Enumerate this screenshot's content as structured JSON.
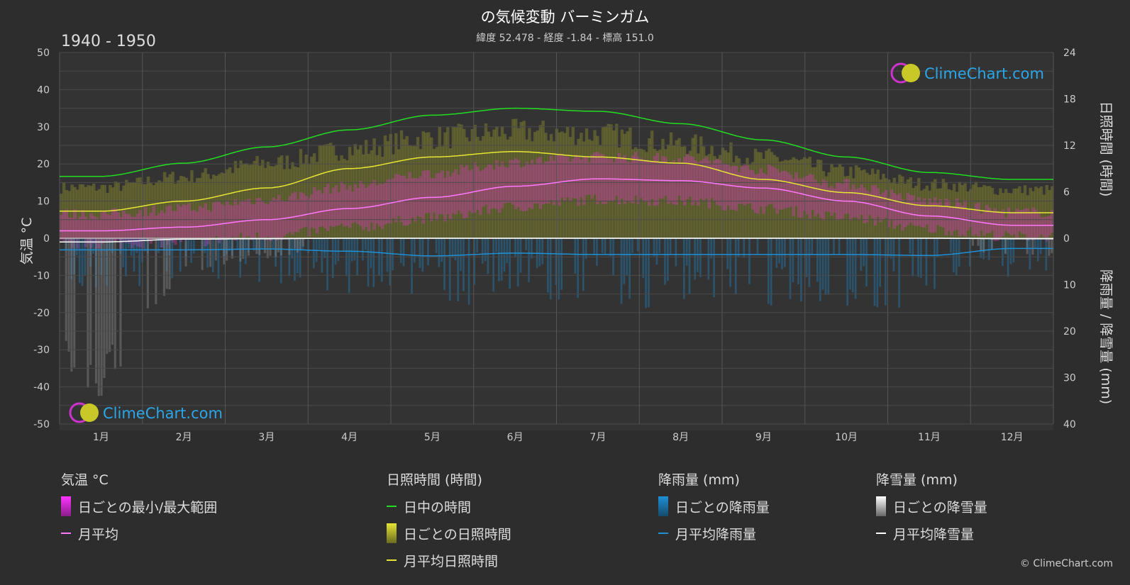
{
  "header": {
    "title": "の気候変動 バーミンガム",
    "subtitle": "緯度 52.478 - 経度 -1.84 - 標高 151.0",
    "period": "1940 - 1950"
  },
  "watermark": {
    "text": "ClimeChart.com"
  },
  "copyright": "© ClimeChart.com",
  "legend": {
    "temperature": {
      "title": "気温 °C",
      "range": "日ごとの最小/最大範囲",
      "mean": "月平均"
    },
    "sunshine": {
      "title": "日照時間 (時間)",
      "daylight": "日中の時間",
      "daily": "日ごとの日照時間",
      "mean": "月平均日照時間"
    },
    "rain": {
      "title": "降雨量 (mm)",
      "daily": "日ごとの降雨量",
      "mean": "月平均降雨量"
    },
    "snow": {
      "title": "降雪量 (mm)",
      "daily": "日ごとの降雪量",
      "mean": "月平均降雪量"
    }
  },
  "colors": {
    "background": "#2d2d2d",
    "plot_background": "#333333",
    "daylight": "#22dd22",
    "sunshine_mean": "#e6e633",
    "sunshine_bar": "#8a8a2e",
    "temp_range": "#d23cb4",
    "temp_mean": "#ff77ff",
    "rain": "#1e90d6",
    "snow": "#ffffff"
  },
  "chart_data": {
    "type": "line",
    "categories": [
      "1月",
      "2月",
      "3月",
      "4月",
      "5月",
      "6月",
      "7月",
      "8月",
      "9月",
      "10月",
      "11月",
      "12月"
    ],
    "y_left": {
      "label": "気温 °C",
      "range": [
        -50,
        50
      ],
      "ticks": [
        50,
        40,
        30,
        20,
        10,
        0,
        -10,
        -20,
        -30,
        -40,
        -50
      ]
    },
    "y_right_top": {
      "label": "日照時間 (時間)",
      "range": [
        0,
        24
      ],
      "ticks": [
        24,
        18,
        12,
        6,
        0
      ]
    },
    "y_right_bottom": {
      "label": "降雨量 / 降雪量 (mm)",
      "range": [
        0,
        40
      ],
      "ticks": [
        0,
        10,
        20,
        30,
        40
      ]
    },
    "grid": true,
    "series": [
      {
        "name": "日中の時間",
        "axis": "sunshine_hours",
        "values": [
          8.0,
          9.7,
          11.8,
          14.0,
          15.9,
          16.8,
          16.4,
          14.8,
          12.7,
          10.5,
          8.5,
          7.6
        ]
      },
      {
        "name": "月平均日照時間",
        "axis": "sunshine_hours",
        "values": [
          3.5,
          4.8,
          6.5,
          9.0,
          10.5,
          11.2,
          10.5,
          9.7,
          7.6,
          5.9,
          4.2,
          3.3
        ]
      },
      {
        "name": "月平均",
        "axis": "temperature_c",
        "values": [
          2.0,
          3.0,
          5.0,
          8.0,
          11.0,
          14.0,
          16.0,
          15.5,
          13.5,
          10.0,
          6.0,
          3.5
        ]
      },
      {
        "name": "月平均降雨量",
        "axis": "precipitation_mm",
        "values": [
          2.5,
          2.5,
          2.3,
          2.8,
          3.8,
          3.2,
          3.5,
          3.5,
          3.5,
          3.5,
          3.7,
          2.2
        ]
      },
      {
        "name": "月平均降雪量",
        "axis": "precipitation_mm",
        "values": [
          0.8,
          0.2,
          0.1,
          0,
          0,
          0,
          0,
          0,
          0,
          0,
          0,
          0.1
        ]
      },
      {
        "name": "日ごとの最小/最大範囲 (最大)",
        "axis": "temperature_c",
        "values": [
          6.5,
          8.0,
          10.5,
          14.0,
          17.5,
          20.5,
          22.0,
          21.5,
          18.5,
          14.5,
          10.0,
          7.0
        ]
      },
      {
        "name": "日ごとの最小/最大範囲 (最小)",
        "axis": "temperature_c",
        "values": [
          -1.5,
          -1.0,
          0.5,
          3.0,
          5.5,
          8.5,
          10.5,
          10.0,
          8.0,
          5.5,
          2.5,
          0.5
        ]
      }
    ]
  }
}
